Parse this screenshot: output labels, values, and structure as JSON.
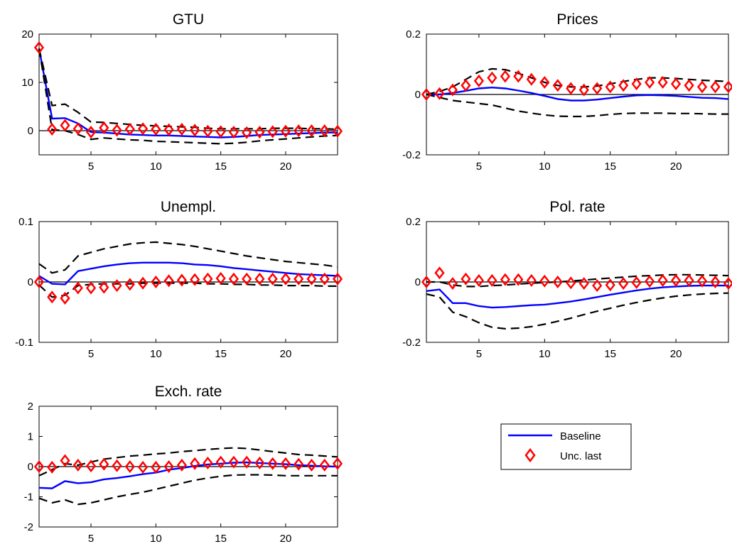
{
  "chart_data": [
    {
      "type": "line",
      "title": "GTU",
      "xlabel": "",
      "ylabel": "",
      "xlim": [
        1,
        24
      ],
      "ylim": [
        -5,
        20
      ],
      "xticks": [
        "5",
        "10",
        "15",
        "20"
      ],
      "yticks": [
        "20",
        "10",
        "0"
      ],
      "grid": false,
      "x": [
        1,
        2,
        3,
        4,
        5,
        6,
        7,
        8,
        9,
        10,
        11,
        12,
        13,
        14,
        15,
        16,
        17,
        18,
        19,
        20,
        21,
        22,
        23,
        24
      ],
      "series": [
        {
          "name": "Baseline",
          "values": [
            17,
            2.5,
            2.6,
            1.5,
            -0.3,
            -0.4,
            -0.6,
            -0.8,
            -0.9,
            -1.0,
            -1.0,
            -1.1,
            -1.2,
            -1.3,
            -1.4,
            -1.3,
            -1.1,
            -0.9,
            -0.8,
            -0.7,
            -0.6,
            -0.5,
            -0.4,
            -0.4
          ],
          "color": "#0000ff"
        },
        {
          "name": "upper",
          "values": [
            17,
            5.2,
            5.5,
            3.8,
            1.8,
            1.7,
            1.5,
            1.3,
            1.1,
            1.0,
            0.9,
            0.8,
            0.7,
            0.5,
            0.4,
            0.4,
            0.4,
            0.4,
            0.5,
            0.5,
            0.5,
            0.4,
            0.4,
            0.3
          ],
          "color": "#000000",
          "dash": true
        },
        {
          "name": "lower",
          "values": [
            17,
            0.2,
            0.0,
            -0.8,
            -1.8,
            -1.5,
            -1.7,
            -1.9,
            -2.0,
            -2.2,
            -2.3,
            -2.4,
            -2.5,
            -2.6,
            -2.7,
            -2.6,
            -2.4,
            -2.1,
            -1.9,
            -1.7,
            -1.5,
            -1.3,
            -1.1,
            -1.0
          ],
          "color": "#000000",
          "dash": true
        },
        {
          "name": "Unc. last",
          "values": [
            17.2,
            0.3,
            1.1,
            0.4,
            -0.3,
            0.6,
            0.1,
            0.3,
            0.4,
            0.3,
            0.2,
            0.3,
            0.1,
            -0.1,
            -0.2,
            -0.3,
            -0.4,
            -0.3,
            -0.2,
            -0.1,
            0.0,
            0.0,
            0.0,
            -0.1
          ],
          "color": "#ff0000",
          "marker": "diamond"
        }
      ]
    },
    {
      "type": "line",
      "title": "Prices",
      "xlabel": "",
      "ylabel": "",
      "xlim": [
        1,
        24
      ],
      "ylim": [
        -0.2,
        0.2
      ],
      "xticks": [
        "5",
        "10",
        "15",
        "20"
      ],
      "yticks": [
        "0.2",
        "0",
        "-0.2"
      ],
      "grid": false,
      "x": [
        1,
        2,
        3,
        4,
        5,
        6,
        7,
        8,
        9,
        10,
        11,
        12,
        13,
        14,
        15,
        16,
        17,
        18,
        19,
        20,
        21,
        22,
        23,
        24
      ],
      "series": [
        {
          "name": "Baseline",
          "values": [
            0,
            0,
            0.005,
            0.012,
            0.02,
            0.023,
            0.02,
            0.013,
            0.005,
            -0.005,
            -0.015,
            -0.02,
            -0.02,
            -0.017,
            -0.012,
            -0.007,
            -0.003,
            -0.002,
            -0.003,
            -0.005,
            -0.008,
            -0.011,
            -0.012,
            -0.015
          ],
          "color": "#0000ff"
        },
        {
          "name": "upper",
          "values": [
            0,
            0.01,
            0.025,
            0.05,
            0.075,
            0.085,
            0.082,
            0.07,
            0.055,
            0.04,
            0.03,
            0.025,
            0.025,
            0.028,
            0.035,
            0.043,
            0.05,
            0.055,
            0.055,
            0.053,
            0.05,
            0.047,
            0.045,
            0.043
          ],
          "color": "#000000",
          "dash": true
        },
        {
          "name": "lower",
          "values": [
            0,
            -0.01,
            -0.02,
            -0.025,
            -0.03,
            -0.035,
            -0.045,
            -0.055,
            -0.062,
            -0.068,
            -0.072,
            -0.073,
            -0.073,
            -0.07,
            -0.066,
            -0.063,
            -0.062,
            -0.062,
            -0.062,
            -0.063,
            -0.063,
            -0.064,
            -0.065,
            -0.065
          ],
          "color": "#000000",
          "dash": true
        },
        {
          "name": "Unc. last",
          "values": [
            0,
            0.003,
            0.015,
            0.03,
            0.045,
            0.055,
            0.06,
            0.06,
            0.05,
            0.04,
            0.03,
            0.02,
            0.015,
            0.02,
            0.025,
            0.03,
            0.035,
            0.04,
            0.04,
            0.035,
            0.03,
            0.025,
            0.025,
            0.025
          ],
          "color": "#ff0000",
          "marker": "diamond"
        }
      ]
    },
    {
      "type": "line",
      "title": "Unempl.",
      "xlabel": "",
      "ylabel": "",
      "xlim": [
        1,
        24
      ],
      "ylim": [
        -0.1,
        0.1
      ],
      "xticks": [
        "5",
        "10",
        "15",
        "20"
      ],
      "yticks": [
        "0.1",
        "0",
        "-0.1"
      ],
      "grid": false,
      "x": [
        1,
        2,
        3,
        4,
        5,
        6,
        7,
        8,
        9,
        10,
        11,
        12,
        13,
        14,
        15,
        16,
        17,
        18,
        19,
        20,
        21,
        22,
        23,
        24
      ],
      "series": [
        {
          "name": "Baseline",
          "values": [
            0.01,
            -0.003,
            -0.004,
            0.018,
            0.022,
            0.026,
            0.029,
            0.031,
            0.032,
            0.032,
            0.032,
            0.031,
            0.029,
            0.028,
            0.026,
            0.023,
            0.021,
            0.019,
            0.017,
            0.015,
            0.013,
            0.012,
            0.011,
            0.01
          ],
          "color": "#0000ff"
        },
        {
          "name": "upper",
          "values": [
            0.03,
            0.015,
            0.02,
            0.043,
            0.049,
            0.055,
            0.059,
            0.063,
            0.065,
            0.066,
            0.064,
            0.062,
            0.059,
            0.055,
            0.051,
            0.047,
            0.043,
            0.04,
            0.037,
            0.034,
            0.032,
            0.03,
            0.028,
            0.025
          ],
          "color": "#000000",
          "dash": true
        },
        {
          "name": "lower",
          "values": [
            -0.005,
            -0.025,
            -0.022,
            -0.006,
            -0.004,
            -0.003,
            -0.003,
            -0.003,
            -0.002,
            -0.002,
            -0.002,
            -0.002,
            -0.002,
            -0.003,
            -0.003,
            -0.004,
            -0.004,
            -0.005,
            -0.005,
            -0.006,
            -0.006,
            -0.006,
            -0.007,
            -0.007
          ],
          "color": "#000000",
          "dash": true
        },
        {
          "name": "Unc. last",
          "values": [
            0,
            -0.025,
            -0.027,
            -0.01,
            -0.01,
            -0.009,
            -0.006,
            -0.004,
            -0.002,
            0,
            0.002,
            0.003,
            0.004,
            0.005,
            0.006,
            0.005,
            0.005,
            0.005,
            0.005,
            0.005,
            0.005,
            0.005,
            0.005,
            0.005
          ],
          "color": "#ff0000",
          "marker": "diamond"
        }
      ]
    },
    {
      "type": "line",
      "title": "Pol. rate",
      "xlabel": "",
      "ylabel": "",
      "xlim": [
        1,
        24
      ],
      "ylim": [
        -0.2,
        0.2
      ],
      "xticks": [
        "5",
        "10",
        "15",
        "20"
      ],
      "yticks": [
        "0.2",
        "0",
        "-0.2"
      ],
      "grid": false,
      "x": [
        1,
        2,
        3,
        4,
        5,
        6,
        7,
        8,
        9,
        10,
        11,
        12,
        13,
        14,
        15,
        16,
        17,
        18,
        19,
        20,
        21,
        22,
        23,
        24
      ],
      "series": [
        {
          "name": "Baseline",
          "values": [
            -0.03,
            -0.025,
            -0.07,
            -0.07,
            -0.08,
            -0.085,
            -0.083,
            -0.08,
            -0.077,
            -0.075,
            -0.07,
            -0.065,
            -0.058,
            -0.05,
            -0.042,
            -0.035,
            -0.028,
            -0.022,
            -0.018,
            -0.015,
            -0.013,
            -0.012,
            -0.012,
            -0.012
          ],
          "color": "#0000ff"
        },
        {
          "name": "upper",
          "values": [
            0,
            0.0,
            -0.01,
            -0.015,
            -0.015,
            -0.012,
            -0.01,
            -0.007,
            -0.004,
            -0.002,
            0,
            0.003,
            0.006,
            0.01,
            0.013,
            0.016,
            0.019,
            0.021,
            0.023,
            0.024,
            0.024,
            0.023,
            0.022,
            0.021
          ],
          "color": "#000000",
          "dash": true
        },
        {
          "name": "lower",
          "values": [
            -0.04,
            -0.05,
            -0.1,
            -0.115,
            -0.135,
            -0.15,
            -0.155,
            -0.153,
            -0.148,
            -0.14,
            -0.13,
            -0.12,
            -0.108,
            -0.097,
            -0.087,
            -0.077,
            -0.068,
            -0.06,
            -0.053,
            -0.047,
            -0.043,
            -0.04,
            -0.038,
            -0.037
          ],
          "color": "#000000",
          "dash": true
        },
        {
          "name": "Unc. last",
          "values": [
            0,
            0.03,
            -0.005,
            0.01,
            0.005,
            0.005,
            0.008,
            0.008,
            0.005,
            0.003,
            0,
            -0.003,
            -0.005,
            -0.012,
            -0.01,
            -0.005,
            -0.002,
            0.002,
            0.005,
            0.005,
            0.005,
            0.003,
            0.0,
            -0.005
          ],
          "color": "#ff0000",
          "marker": "diamond"
        }
      ]
    },
    {
      "type": "line",
      "title": "Exch. rate",
      "xlabel": "",
      "ylabel": "",
      "xlim": [
        1,
        24
      ],
      "ylim": [
        -2,
        2
      ],
      "xticks": [
        "5",
        "10",
        "15",
        "20"
      ],
      "yticks": [
        "2",
        "1",
        "0",
        "-1",
        "-2"
      ],
      "grid": false,
      "x": [
        1,
        2,
        3,
        4,
        5,
        6,
        7,
        8,
        9,
        10,
        11,
        12,
        13,
        14,
        15,
        16,
        17,
        18,
        19,
        20,
        21,
        22,
        23,
        24
      ],
      "series": [
        {
          "name": "Baseline",
          "values": [
            -0.7,
            -0.72,
            -0.48,
            -0.55,
            -0.52,
            -0.42,
            -0.38,
            -0.32,
            -0.25,
            -0.2,
            -0.1,
            -0.05,
            0.02,
            0.07,
            0.1,
            0.13,
            0.14,
            0.12,
            0.1,
            0.08,
            0.05,
            0.03,
            0.01,
            0.0
          ],
          "color": "#0000ff"
        },
        {
          "name": "upper",
          "values": [
            -0.3,
            -0.1,
            0.1,
            0.05,
            0.15,
            0.25,
            0.3,
            0.35,
            0.38,
            0.42,
            0.45,
            0.5,
            0.53,
            0.57,
            0.6,
            0.62,
            0.6,
            0.55,
            0.5,
            0.45,
            0.4,
            0.38,
            0.35,
            0.32
          ],
          "color": "#000000",
          "dash": true
        },
        {
          "name": "lower",
          "values": [
            -1.05,
            -1.2,
            -1.1,
            -1.25,
            -1.2,
            -1.1,
            -1.0,
            -0.92,
            -0.85,
            -0.75,
            -0.65,
            -0.55,
            -0.45,
            -0.38,
            -0.32,
            -0.28,
            -0.27,
            -0.27,
            -0.28,
            -0.3,
            -0.3,
            -0.3,
            -0.3,
            -0.3
          ],
          "color": "#000000",
          "dash": true
        },
        {
          "name": "Unc. last",
          "values": [
            0,
            -0.02,
            0.2,
            0.05,
            0.02,
            0.08,
            0.03,
            0.0,
            -0.02,
            -0.02,
            0.0,
            0.05,
            0.1,
            0.12,
            0.15,
            0.15,
            0.15,
            0.12,
            0.1,
            0.1,
            0.08,
            0.05,
            0.05,
            0.1
          ],
          "color": "#ff0000",
          "marker": "diamond"
        }
      ]
    }
  ],
  "legend": {
    "placement": "bottom-right",
    "entries": [
      {
        "label": "Baseline",
        "color": "#0000ff",
        "style": "line"
      },
      {
        "label": "Unc. last",
        "color": "#ff0000",
        "style": "diamond"
      }
    ]
  }
}
